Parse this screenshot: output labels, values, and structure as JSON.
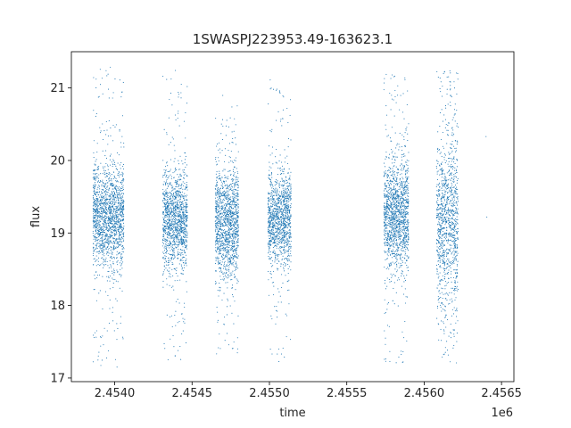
{
  "chart_data": {
    "type": "scatter",
    "title": "1SWASPJ223953.49-163623.1",
    "xlabel": "time",
    "ylabel": "flux",
    "x_offset_label": "1e6",
    "xlim": [
      2453720,
      2456580
    ],
    "ylim": [
      16.95,
      21.5
    ],
    "x_ticks": [
      2454000,
      2454500,
      2455000,
      2455500,
      2456000,
      2456500
    ],
    "x_tick_labels": [
      "2.4540",
      "2.4545",
      "2.4550",
      "2.4555",
      "2.4560",
      "2.4565"
    ],
    "y_ticks": [
      17,
      18,
      19,
      20,
      21
    ],
    "y_tick_labels": [
      "17",
      "18",
      "19",
      "20",
      "21"
    ],
    "grid": false,
    "point_color": "#1f77b4",
    "clusters": [
      {
        "x_range": [
          2453860,
          2454060
        ],
        "y_center": 19.25,
        "y_spread": 0.35,
        "y_min": 17.15,
        "y_max": 21.3,
        "n_core": 1500,
        "n_outer": 160
      },
      {
        "x_range": [
          2454310,
          2454470
        ],
        "y_center": 19.2,
        "y_spread": 0.32,
        "y_min": 17.15,
        "y_max": 21.25,
        "n_core": 1200,
        "n_outer": 140
      },
      {
        "x_range": [
          2454650,
          2454800
        ],
        "y_center": 19.15,
        "y_spread": 0.38,
        "y_min": 17.3,
        "y_max": 20.9,
        "n_core": 1250,
        "n_outer": 110
      },
      {
        "x_range": [
          2454990,
          2455140
        ],
        "y_center": 19.2,
        "y_spread": 0.32,
        "y_min": 17.2,
        "y_max": 21.2,
        "n_core": 1100,
        "n_outer": 110
      },
      {
        "x_range": [
          2455740,
          2455900
        ],
        "y_center": 19.25,
        "y_spread": 0.38,
        "y_min": 17.2,
        "y_max": 21.2,
        "n_core": 1300,
        "n_outer": 150
      },
      {
        "x_range": [
          2456080,
          2456220
        ],
        "y_center": 19.15,
        "y_spread": 0.55,
        "y_min": 17.2,
        "y_max": 21.25,
        "n_core": 900,
        "n_outer": 220
      }
    ],
    "isolated_points": [
      {
        "x": 2456400,
        "y": 20.33
      },
      {
        "x": 2456405,
        "y": 19.22
      }
    ]
  }
}
